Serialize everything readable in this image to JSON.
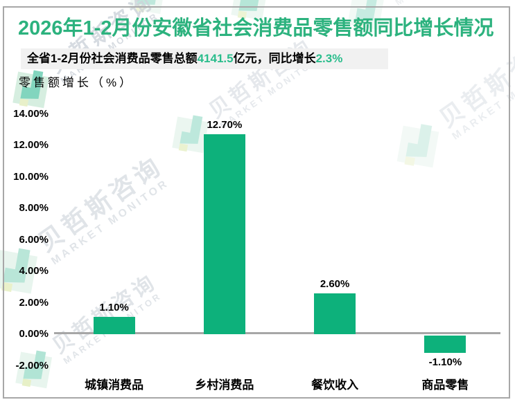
{
  "header": {
    "title": "2026年1-2月份安徽省社会消费品零售额同比增长情况",
    "subtitle_prefix": "全省1-2月份社会消费品零售总额",
    "subtitle_value1": "4141.5",
    "subtitle_mid": "亿元，同比增长",
    "subtitle_value2": "2.3%"
  },
  "watermark": {
    "cn": "贝哲斯咨询",
    "en": "MARKET MONITOR"
  },
  "colors": {
    "bar": "#0DB17B",
    "title_green": "#2CB27E",
    "highlight_green": "#2ABD8C",
    "zero_line": "#A6A6A6",
    "frame": "#A7A7A7",
    "subtitle_bg": "#F1F1F1",
    "watermark_text": "#CDD3DA"
  },
  "chart_data": {
    "type": "bar",
    "title": "2026年1-2月份安徽省社会消费品零售额同比增长情况",
    "ylabel": "零售额增长（%）",
    "xlabel": "",
    "categories": [
      "城镇消费品",
      "乡村消费品",
      "餐饮收入",
      "商品零售"
    ],
    "values": [
      1.1,
      12.7,
      2.6,
      -1.1
    ],
    "value_labels": [
      "1.10%",
      "12.70%",
      "2.60%",
      "-1.10%"
    ],
    "ytick_values": [
      14,
      12,
      10,
      8,
      6,
      4,
      2,
      0,
      -2
    ],
    "ytick_labels": [
      "14.00%",
      "12.00%",
      "10.00%",
      "8.00%",
      "6.00%",
      "4.00%",
      "2.00%",
      "0.00%",
      "-2.00%"
    ],
    "ylim": [
      -2,
      14
    ],
    "grid": false,
    "legend": false
  }
}
